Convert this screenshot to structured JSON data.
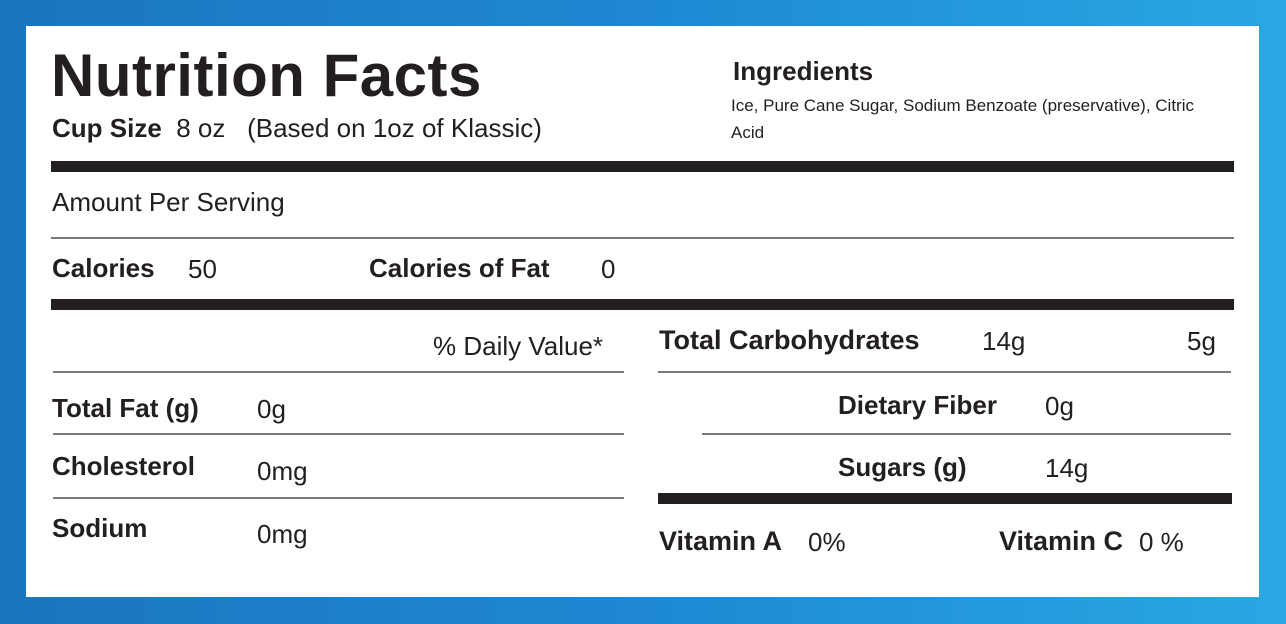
{
  "header": {
    "title": "Nutrition Facts",
    "cup_size_label": "Cup Size",
    "cup_size_value": "8 oz",
    "cup_size_note": "(Based on 1oz of Klassic)"
  },
  "ingredients": {
    "title": "Ingredients",
    "text": "Ice, Pure Cane Sugar, Sodium Benzoate (preservative), Citric Acid"
  },
  "serving": {
    "amount_label": "Amount Per Serving"
  },
  "calories": {
    "label": "Calories",
    "value": "50",
    "fat_label": "Calories of Fat",
    "fat_value": "0"
  },
  "daily_value_header": "% Daily Value*",
  "left_nutrients": [
    {
      "label": "Total Fat (g)",
      "value": "0g"
    },
    {
      "label": "Cholesterol",
      "value": "0mg"
    },
    {
      "label": "Sodium",
      "value": "0mg"
    }
  ],
  "carbs": {
    "label": "Total Carbohydrates",
    "value": "14g",
    "daily": "5g",
    "sub": [
      {
        "label": "Dietary Fiber",
        "value": "0g"
      },
      {
        "label": "Sugars (g)",
        "value": "14g"
      }
    ]
  },
  "vitamins": [
    {
      "label": "Vitamin A",
      "value": "0%"
    },
    {
      "label": "Vitamin C",
      "value": "0 %"
    }
  ],
  "colors": {
    "border_start": "#1b75bc",
    "border_end": "#29a8e3",
    "text": "#231f20",
    "background": "#ffffff"
  }
}
